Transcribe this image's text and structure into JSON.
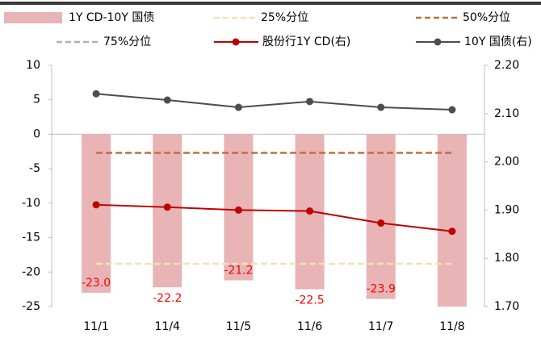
{
  "chart_data": {
    "type": "bar",
    "categories": [
      "11/1",
      "11/4",
      "11/5",
      "11/6",
      "11/7",
      "11/8"
    ],
    "series": [
      {
        "name": "1Y CD-10Y 国债",
        "type": "bar",
        "color": "#e8b4b6",
        "values": [
          -23.0,
          -22.2,
          -21.2,
          -22.5,
          -23.9,
          -25.0
        ],
        "value_labels": [
          "-23.0",
          "-22.2",
          "-21.2",
          "-22.5",
          "-23.9",
          null
        ]
      },
      {
        "name": "25%分位",
        "type": "hline",
        "color": "#f1e2b3",
        "value": -18.8
      },
      {
        "name": "50%分位",
        "type": "hline",
        "color": "#c0703a",
        "value": -2.7
      },
      {
        "name": "75%分位",
        "type": "hline",
        "color": "#b0b0b0",
        "value": null
      },
      {
        "name": "股份行1Y CD(右)",
        "type": "line",
        "axis": "y2",
        "color": "#c00000",
        "values": [
          1.911,
          1.906,
          1.9,
          1.898,
          1.873,
          1.856
        ]
      },
      {
        "name": "10Y 国债(右)",
        "type": "line",
        "axis": "y2",
        "color": "#4d4d4d",
        "values": [
          2.141,
          2.128,
          2.113,
          2.125,
          2.113,
          2.108
        ]
      }
    ],
    "ylim": [
      -25,
      10
    ],
    "yticks": [
      10,
      5,
      0,
      -5,
      -10,
      -15,
      -20,
      -25
    ],
    "y2lim": [
      1.7,
      2.2
    ],
    "y2ticks": [
      {
        "value": 2.2,
        "label": "2.20"
      },
      {
        "value": 2.1,
        "label": "2.10"
      },
      {
        "value": 2.0,
        "label": "2.00"
      },
      {
        "value": 1.9,
        "label": "1.90"
      },
      {
        "value": 1.8,
        "label": "1.80"
      },
      {
        "value": 1.7,
        "label": "1.70"
      }
    ]
  }
}
